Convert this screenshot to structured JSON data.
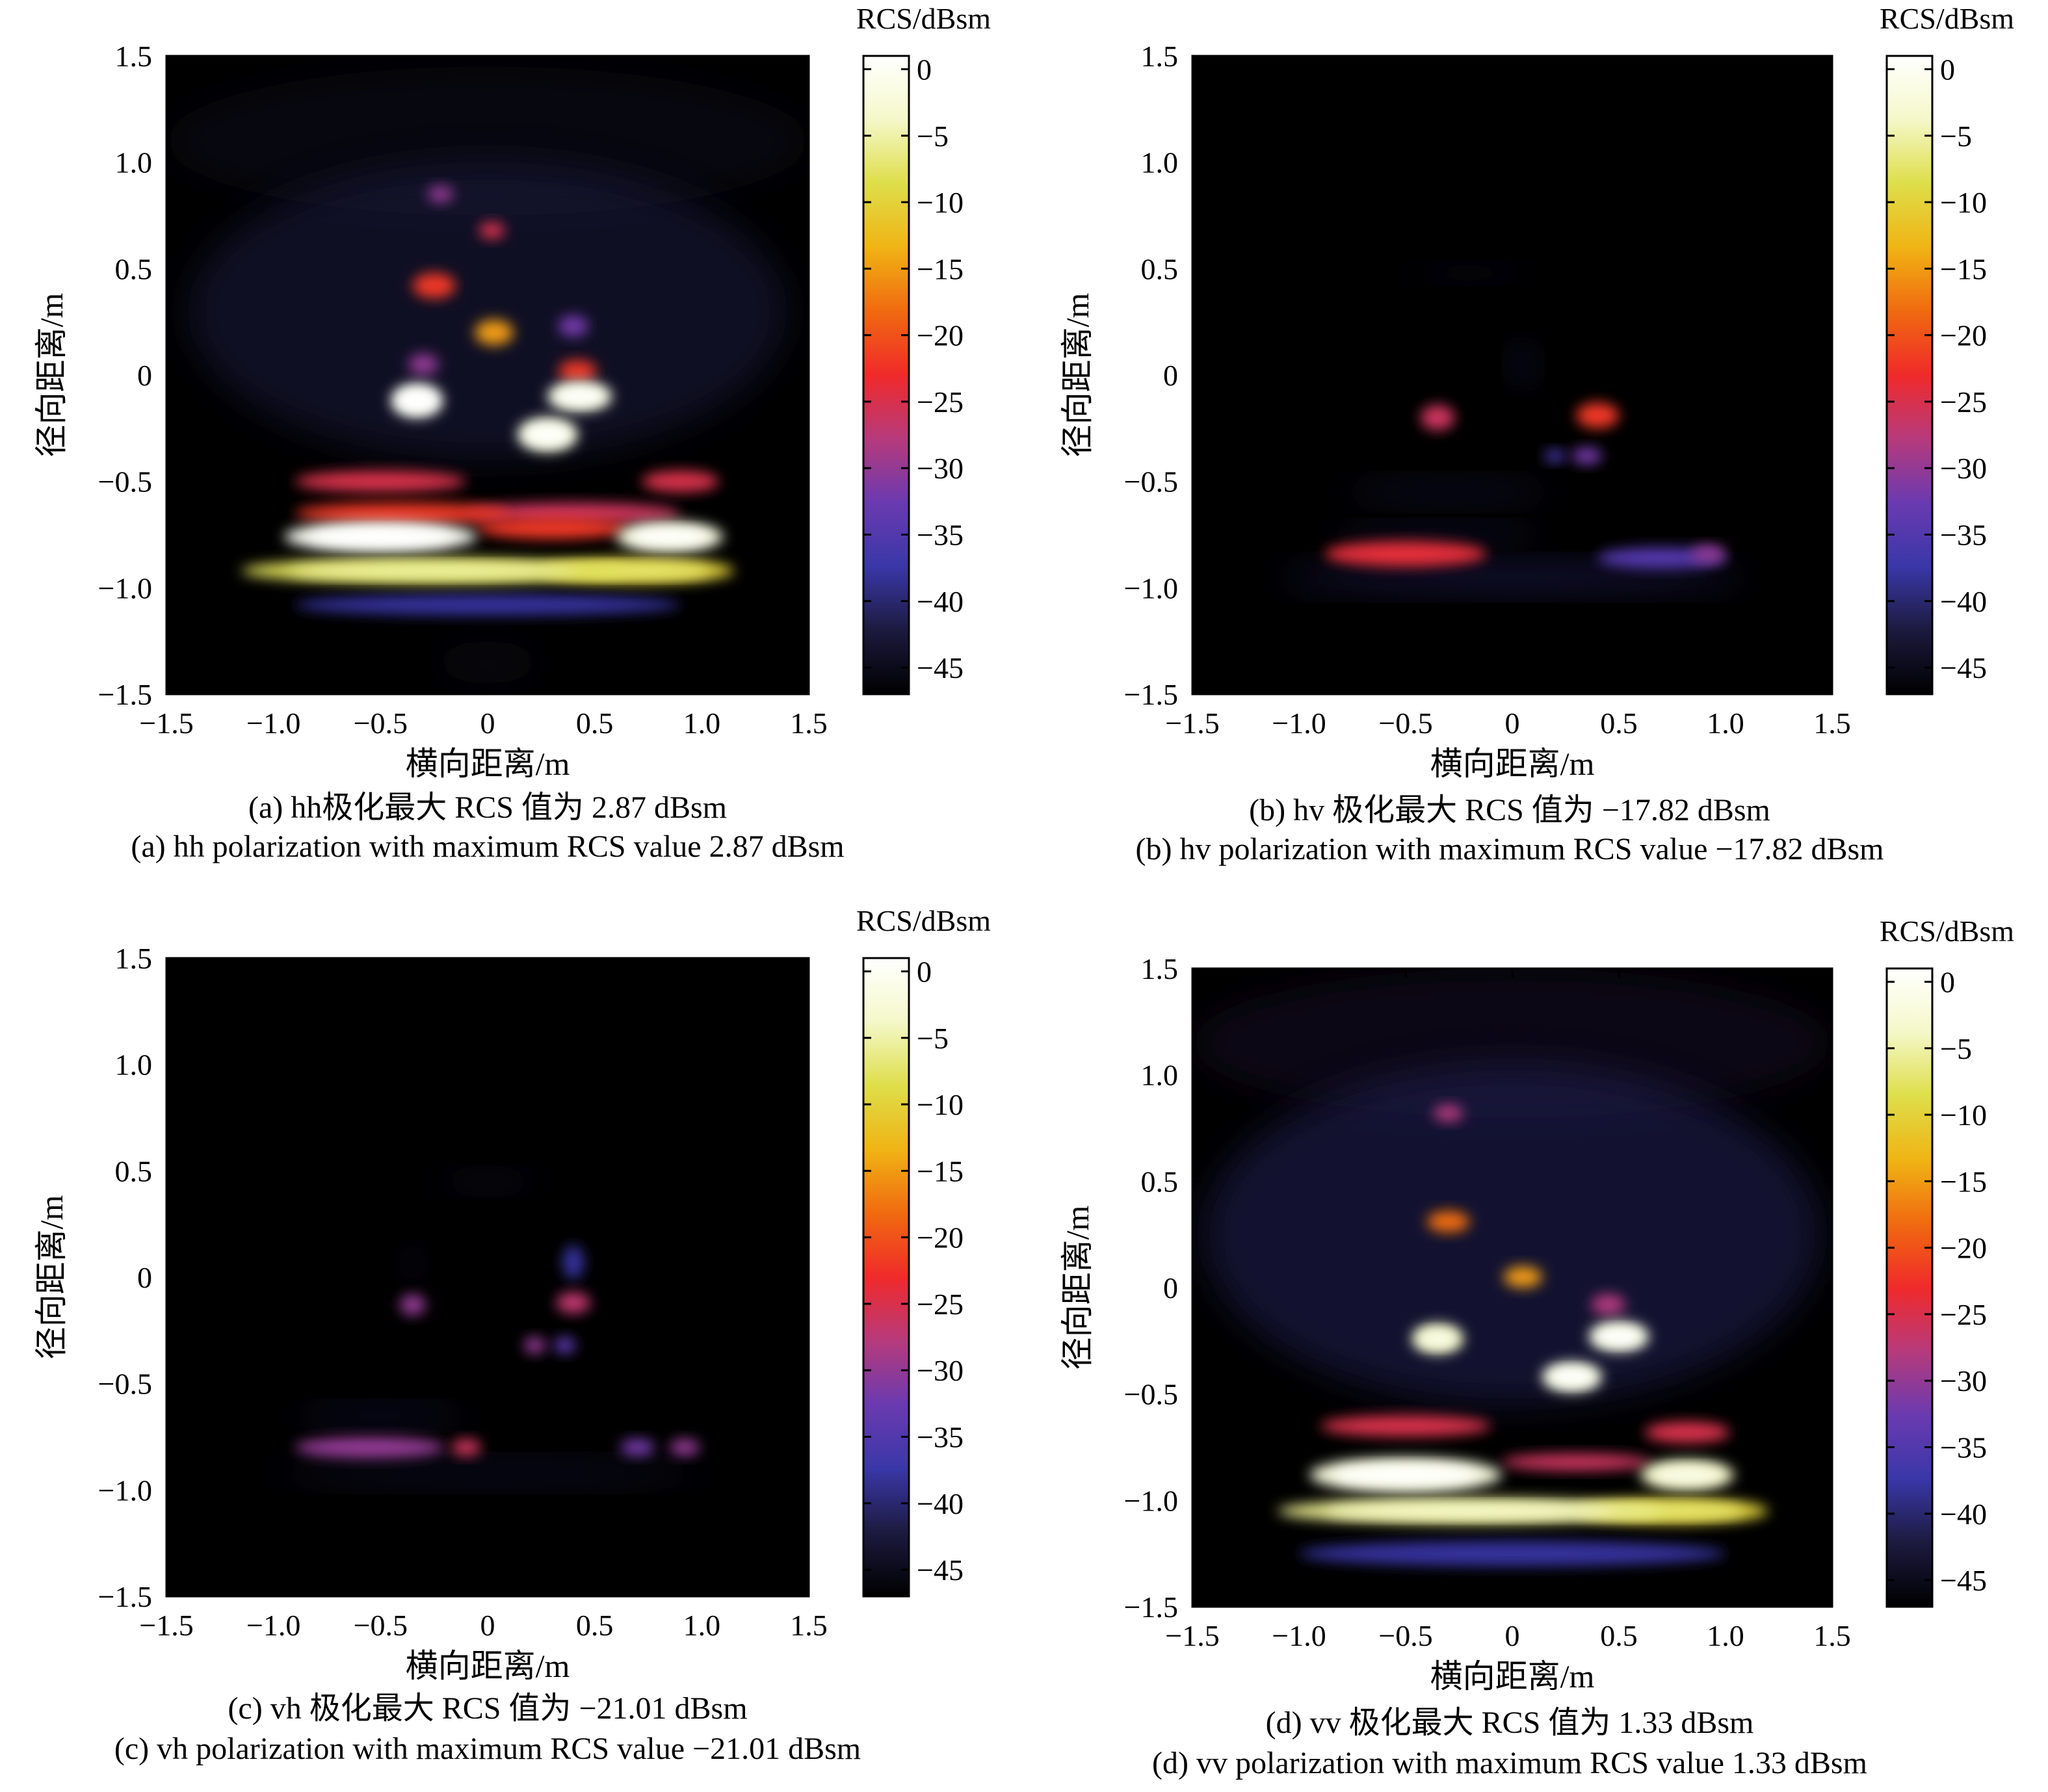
{
  "colorbar_title": "RCS/dBsm",
  "colormap": [
    "#000000",
    "#1c1a3e",
    "#3a37a8",
    "#6a3ab0",
    "#b63a7c",
    "#f02a2a",
    "#f06a10",
    "#f0b414",
    "#dede4a",
    "#f4f8c8",
    "#ffffff"
  ],
  "chart_data": [
    {
      "type": "heatmap",
      "panel": "a",
      "xlabel": "横向距离/m",
      "ylabel": "径向距离/m",
      "xlim": [
        -1.5,
        1.5
      ],
      "ylim": [
        -1.5,
        1.5
      ],
      "xticks": [
        "−1.5",
        "−1.0",
        "−0.5",
        "0",
        "0.5",
        "1.0",
        "1.5"
      ],
      "yticks": [
        "1.5",
        "1.0",
        "0.5",
        "0",
        "−0.5",
        "−1.0",
        "−1.5"
      ],
      "colorbar": {
        "title": "RCS/dBsm",
        "range": [
          -47,
          1
        ],
        "ticks": [
          "0",
          "−5",
          "−10",
          "−15",
          "−20",
          "−25",
          "−30",
          "−35",
          "−40",
          "−45"
        ]
      },
      "max_rcs_dBsm": 2.87,
      "caption_cn": "(a) hh极化最大 RCS 值为 2.87 dBsm",
      "caption_en": "(a) hh polarization with maximum RCS value 2.87 dBsm",
      "blobs": [
        {
          "x": -0.5,
          "y": -0.5,
          "w": 0.4,
          "h": 0.05,
          "db": -25
        },
        {
          "x": 0.9,
          "y": -0.5,
          "w": 0.18,
          "h": 0.05,
          "db": -25
        },
        {
          "x": -0.4,
          "y": -0.65,
          "w": 0.5,
          "h": 0.05,
          "db": -22
        },
        {
          "x": 0.4,
          "y": -0.65,
          "w": 0.5,
          "h": 0.05,
          "db": -26
        },
        {
          "x": -0.5,
          "y": -0.76,
          "w": 0.45,
          "h": 0.07,
          "db": 0
        },
        {
          "x": 0.85,
          "y": -0.76,
          "w": 0.25,
          "h": 0.07,
          "db": -2
        },
        {
          "x": 0.3,
          "y": -0.72,
          "w": 0.35,
          "h": 0.05,
          "db": -22
        },
        {
          "x": -0.25,
          "y": -0.92,
          "w": 0.9,
          "h": 0.06,
          "db": -8
        },
        {
          "x": 0.7,
          "y": -0.92,
          "w": 0.45,
          "h": 0.06,
          "db": -10
        },
        {
          "x": 0,
          "y": -1.08,
          "w": 0.9,
          "h": 0.05,
          "db": -38
        },
        {
          "x": -0.33,
          "y": -0.12,
          "w": 0.12,
          "h": 0.08,
          "db": 0
        },
        {
          "x": 0.43,
          "y": -0.1,
          "w": 0.15,
          "h": 0.07,
          "db": -2
        },
        {
          "x": 0.28,
          "y": -0.28,
          "w": 0.14,
          "h": 0.08,
          "db": -2
        },
        {
          "x": 0.03,
          "y": 0.2,
          "w": 0.09,
          "h": 0.06,
          "db": -15
        },
        {
          "x": -0.25,
          "y": 0.42,
          "w": 0.1,
          "h": 0.06,
          "db": -22
        },
        {
          "x": 0.02,
          "y": 0.68,
          "w": 0.06,
          "h": 0.04,
          "db": -25
        },
        {
          "x": -0.22,
          "y": 0.85,
          "w": 0.06,
          "h": 0.04,
          "db": -30
        },
        {
          "x": 0.42,
          "y": 0.02,
          "w": 0.09,
          "h": 0.05,
          "db": -22
        },
        {
          "x": 0.4,
          "y": 0.23,
          "w": 0.07,
          "h": 0.05,
          "db": -32
        },
        {
          "x": -0.3,
          "y": 0.05,
          "w": 0.07,
          "h": 0.05,
          "db": -30
        },
        {
          "x": 0,
          "y": 0.3,
          "w": 1.4,
          "h": 0.7,
          "db": -42
        },
        {
          "x": 0,
          "y": 1.1,
          "w": 1.5,
          "h": 0.35,
          "db": -45
        },
        {
          "x": 0,
          "y": -1.35,
          "w": 0.25,
          "h": 0.1,
          "db": -45
        }
      ]
    },
    {
      "type": "heatmap",
      "panel": "b",
      "xlabel": "横向距离/m",
      "ylabel": "径向距离/m",
      "xlim": [
        -1.5,
        1.5
      ],
      "ylim": [
        -1.5,
        1.5
      ],
      "xticks": [
        "−1.5",
        "−1.0",
        "−0.5",
        "0",
        "0.5",
        "1.0",
        "1.5"
      ],
      "yticks": [
        "1.5",
        "1.0",
        "0.5",
        "0",
        "−0.5",
        "−1.0",
        "−1.5"
      ],
      "colorbar": {
        "title": "RCS/dBsm",
        "range": [
          -47,
          1
        ],
        "ticks": [
          "0",
          "−5",
          "−10",
          "−15",
          "−20",
          "−25",
          "−30",
          "−35",
          "−40",
          "−45"
        ]
      },
      "max_rcs_dBsm": -17.82,
      "caption_cn": "(b) hv 极化最大 RCS 值为 −17.82 dBsm",
      "caption_en": "(b) hv polarization with maximum RCS value −17.82 dBsm",
      "blobs": [
        {
          "x": -0.5,
          "y": -0.84,
          "w": 0.38,
          "h": 0.06,
          "db": -24
        },
        {
          "x": 0.7,
          "y": -0.86,
          "w": 0.3,
          "h": 0.05,
          "db": -35
        },
        {
          "x": 0.92,
          "y": -0.84,
          "w": 0.08,
          "h": 0.04,
          "db": -30
        },
        {
          "x": 0,
          "y": -0.95,
          "w": 1.1,
          "h": 0.06,
          "db": -40
        },
        {
          "x": -0.3,
          "y": -0.55,
          "w": 0.5,
          "h": 0.05,
          "db": -42
        },
        {
          "x": -0.35,
          "y": -0.75,
          "w": 0.5,
          "h": 0.04,
          "db": -41
        },
        {
          "x": -0.35,
          "y": -0.2,
          "w": 0.08,
          "h": 0.06,
          "db": -26
        },
        {
          "x": 0.4,
          "y": -0.19,
          "w": 0.1,
          "h": 0.06,
          "db": -22
        },
        {
          "x": 0.35,
          "y": -0.38,
          "w": 0.07,
          "h": 0.04,
          "db": -32
        },
        {
          "x": 0.2,
          "y": -0.38,
          "w": 0.05,
          "h": 0.03,
          "db": -36
        },
        {
          "x": 0.05,
          "y": 0.05,
          "w": 0.05,
          "h": 0.08,
          "db": -40
        },
        {
          "x": -0.2,
          "y": 0.48,
          "w": 0.3,
          "h": 0.03,
          "db": -43
        }
      ]
    },
    {
      "type": "heatmap",
      "panel": "c",
      "xlabel": "横向距离/m",
      "ylabel": "径向距离/m",
      "xlim": [
        -1.5,
        1.5
      ],
      "ylim": [
        -1.5,
        1.5
      ],
      "xticks": [
        "−1.5",
        "−1.0",
        "−0.5",
        "0",
        "0.5",
        "1.0",
        "1.5"
      ],
      "yticks": [
        "1.5",
        "1.0",
        "0.5",
        "0",
        "−0.5",
        "−1.0",
        "−1.5"
      ],
      "colorbar": {
        "title": "RCS/dBsm",
        "range": [
          -47,
          1
        ],
        "ticks": [
          "0",
          "−5",
          "−10",
          "−15",
          "−20",
          "−25",
          "−30",
          "−35",
          "−40",
          "−45"
        ]
      },
      "max_rcs_dBsm": -21.01,
      "caption_cn": "(c) vh 极化最大 RCS 值为 −21.01 dBsm",
      "caption_en": "(c) vh polarization with maximum RCS value −21.01 dBsm",
      "blobs": [
        {
          "x": -0.55,
          "y": -0.8,
          "w": 0.35,
          "h": 0.05,
          "db": -30
        },
        {
          "x": -0.1,
          "y": -0.8,
          "w": 0.07,
          "h": 0.04,
          "db": -26
        },
        {
          "x": 0.7,
          "y": -0.8,
          "w": 0.08,
          "h": 0.04,
          "db": -32
        },
        {
          "x": 0.92,
          "y": -0.8,
          "w": 0.07,
          "h": 0.04,
          "db": -30
        },
        {
          "x": -0.5,
          "y": -0.65,
          "w": 0.4,
          "h": 0.04,
          "db": -41
        },
        {
          "x": 0,
          "y": -0.92,
          "w": 1.0,
          "h": 0.05,
          "db": -42
        },
        {
          "x": -0.35,
          "y": -0.13,
          "w": 0.06,
          "h": 0.05,
          "db": -30
        },
        {
          "x": 0.4,
          "y": -0.12,
          "w": 0.08,
          "h": 0.05,
          "db": -27
        },
        {
          "x": 0.22,
          "y": -0.32,
          "w": 0.05,
          "h": 0.04,
          "db": -30
        },
        {
          "x": 0.36,
          "y": -0.32,
          "w": 0.05,
          "h": 0.04,
          "db": -34
        },
        {
          "x": -0.35,
          "y": 0.07,
          "w": 0.04,
          "h": 0.05,
          "db": -40
        },
        {
          "x": 0.4,
          "y": 0.07,
          "w": 0.05,
          "h": 0.08,
          "db": -38
        },
        {
          "x": 0,
          "y": 0.45,
          "w": 0.25,
          "h": 0.04,
          "db": -43
        }
      ]
    },
    {
      "type": "heatmap",
      "panel": "d",
      "xlabel": "横向距离/m",
      "ylabel": "径向距离/m",
      "xlim": [
        -1.5,
        1.5
      ],
      "ylim": [
        -1.5,
        1.5
      ],
      "xticks": [
        "−1.5",
        "−1.0",
        "−0.5",
        "0",
        "0.5",
        "1.0",
        "1.5"
      ],
      "yticks": [
        "1.5",
        "1.0",
        "0.5",
        "0",
        "−0.5",
        "−1.0",
        "−1.5"
      ],
      "colorbar": {
        "title": "RCS/dBsm",
        "range": [
          -47,
          1
        ],
        "ticks": [
          "0",
          "−5",
          "−10",
          "−15",
          "−20",
          "−25",
          "−30",
          "−35",
          "−40",
          "−45"
        ]
      },
      "max_rcs_dBsm": 1.33,
      "caption_cn": "(d) vv 极化最大 RCS 值为 1.33 dBsm",
      "caption_en": "(d) vv polarization with maximum RCS value 1.33 dBsm",
      "blobs": [
        {
          "x": -0.5,
          "y": -0.65,
          "w": 0.4,
          "h": 0.05,
          "db": -25
        },
        {
          "x": 0.82,
          "y": -0.68,
          "w": 0.2,
          "h": 0.05,
          "db": -25
        },
        {
          "x": -0.5,
          "y": -0.88,
          "w": 0.45,
          "h": 0.08,
          "db": -2
        },
        {
          "x": 0.82,
          "y": -0.88,
          "w": 0.22,
          "h": 0.07,
          "db": -4
        },
        {
          "x": 0.3,
          "y": -0.82,
          "w": 0.35,
          "h": 0.04,
          "db": -26
        },
        {
          "x": -0.2,
          "y": -1.05,
          "w": 0.9,
          "h": 0.06,
          "db": -6
        },
        {
          "x": 0.75,
          "y": -1.05,
          "w": 0.45,
          "h": 0.06,
          "db": -10
        },
        {
          "x": 0,
          "y": -1.25,
          "w": 1.0,
          "h": 0.06,
          "db": -38
        },
        {
          "x": -0.35,
          "y": -0.24,
          "w": 0.12,
          "h": 0.07,
          "db": -4
        },
        {
          "x": 0.5,
          "y": -0.23,
          "w": 0.14,
          "h": 0.07,
          "db": -2
        },
        {
          "x": 0.28,
          "y": -0.42,
          "w": 0.14,
          "h": 0.07,
          "db": -2
        },
        {
          "x": 0.05,
          "y": 0.05,
          "w": 0.09,
          "h": 0.05,
          "db": -15
        },
        {
          "x": -0.3,
          "y": 0.31,
          "w": 0.1,
          "h": 0.05,
          "db": -18
        },
        {
          "x": -0.3,
          "y": 0.82,
          "w": 0.07,
          "h": 0.04,
          "db": -28
        },
        {
          "x": 0.45,
          "y": -0.08,
          "w": 0.08,
          "h": 0.05,
          "db": -28
        },
        {
          "x": 0,
          "y": 0.25,
          "w": 1.45,
          "h": 0.8,
          "db": -41
        },
        {
          "x": 0,
          "y": 1.15,
          "w": 1.5,
          "h": 0.35,
          "db": -44
        }
      ]
    }
  ]
}
